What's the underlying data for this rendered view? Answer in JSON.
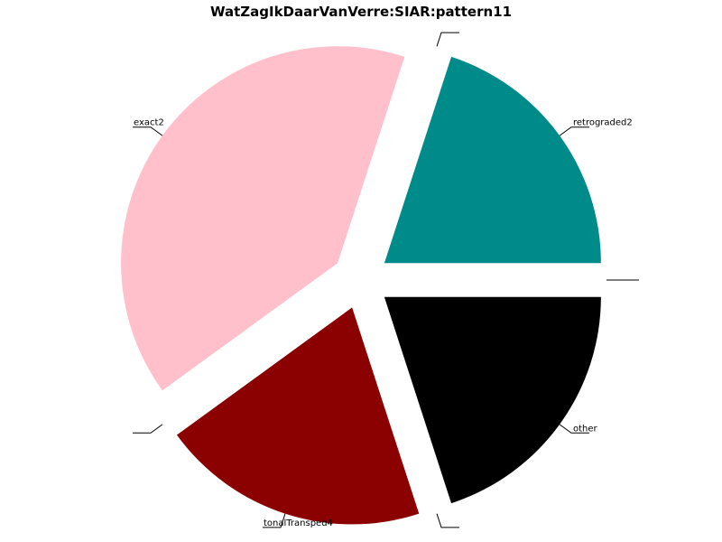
{
  "chart_data": {
    "type": "pie",
    "title": "WatZagIkDaarVanVerre:SIAR:pattern11",
    "slices": [
      {
        "label": "other",
        "value": 20,
        "color": "#000000"
      },
      {
        "label": "",
        "value": 0,
        "color": "#000000"
      },
      {
        "label": "tonalTransped4",
        "value": 20,
        "color": "#8b0000"
      },
      {
        "label": "",
        "value": 0,
        "color": "#000000"
      },
      {
        "label": "exact2",
        "value": 40,
        "color": "#ffc0cb"
      },
      {
        "label": "",
        "value": 0,
        "color": "#000000"
      },
      {
        "label": "retrograded2",
        "value": 20,
        "color": "#008b8b"
      },
      {
        "label": "",
        "value": 0,
        "color": "#000000"
      }
    ],
    "start_angle_deg": 0,
    "direction": "clockwise",
    "exploded": true,
    "legend": "none"
  }
}
